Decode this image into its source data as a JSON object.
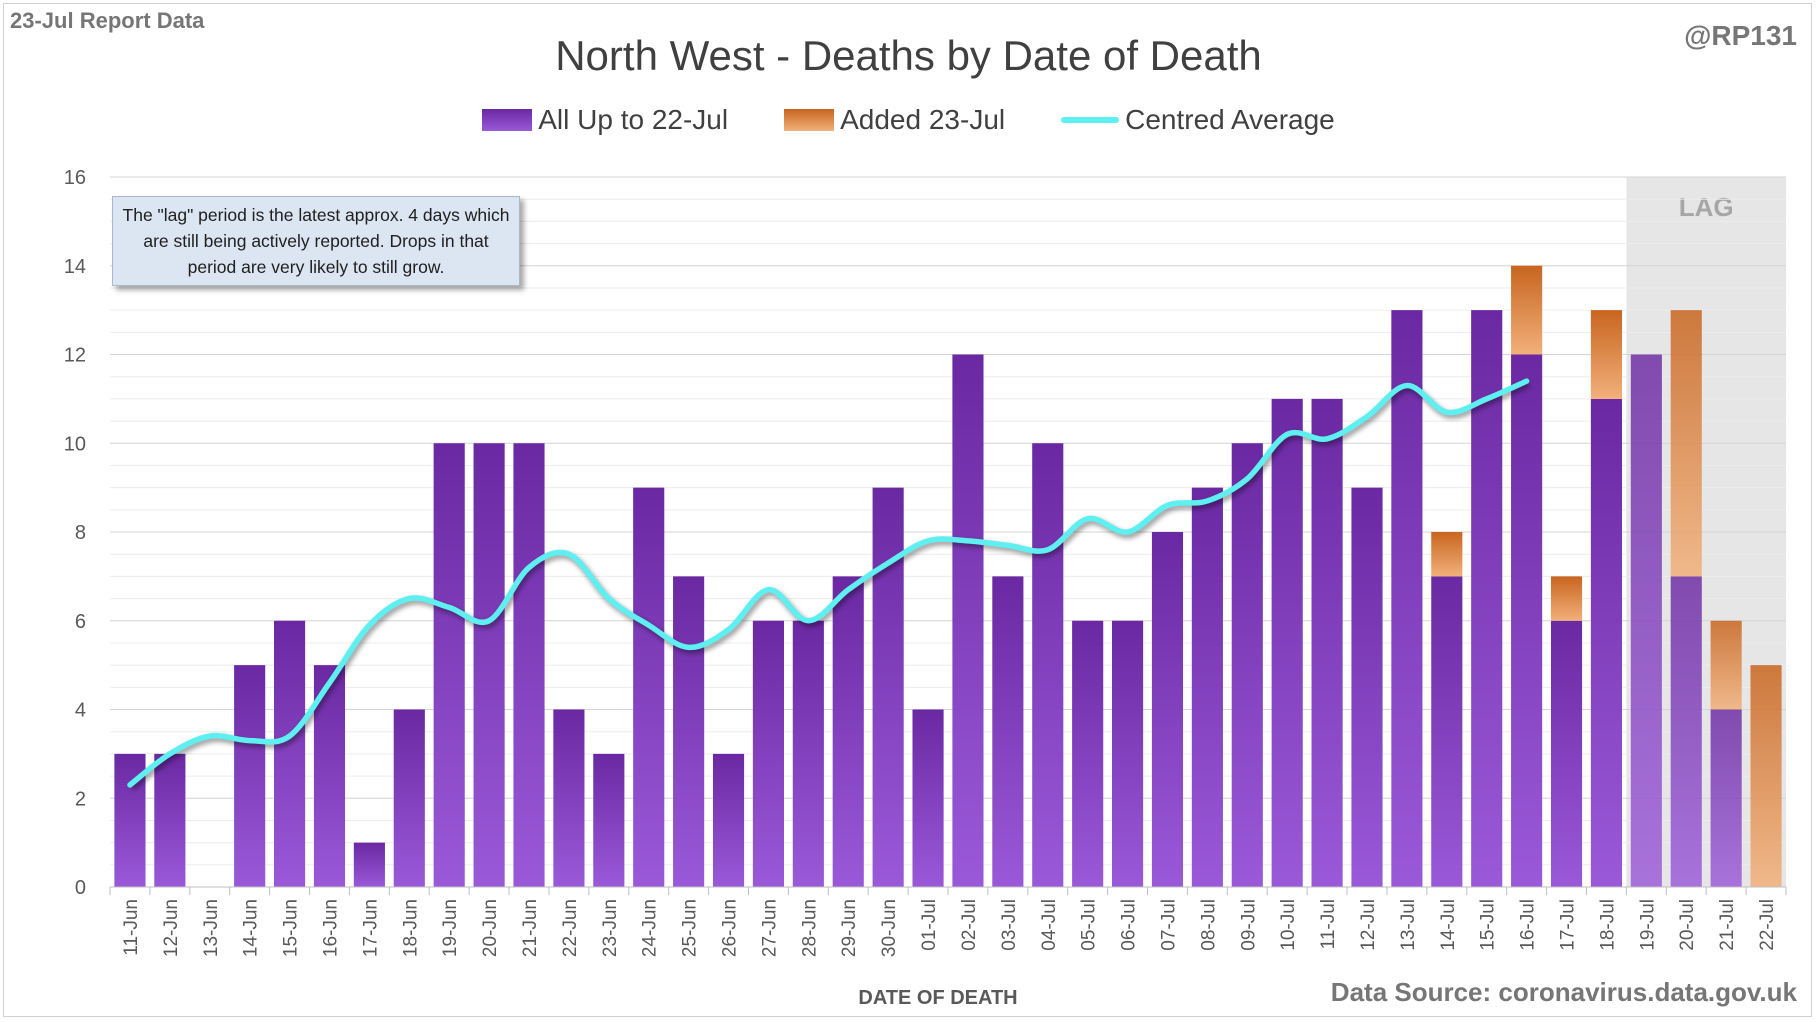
{
  "header": {
    "report_date": "23-Jul Report Data",
    "handle": "@RP131"
  },
  "footer": {
    "source": "Data Source: coronavirus.data.gov.uk"
  },
  "note": "The \"lag\" period is the latest approx. 4 days which are still being actively reported.  Drops in that period are very likely to still grow.",
  "colors": {
    "purple_top": "#6a28a2",
    "purple_bottom": "#9a59d8",
    "orange_top": "#c8651f",
    "orange_bottom": "#f2b07a",
    "average_line": "#5ef0f0",
    "lag_shade": "#e6e6e6"
  },
  "chart_data": {
    "type": "bar",
    "title": "North West - Deaths by Date of Death",
    "xlabel": "DATE OF DEATH",
    "ylabel": "",
    "ylim": [
      0,
      16
    ],
    "yticks": [
      0,
      2,
      4,
      6,
      8,
      10,
      12,
      14,
      16
    ],
    "stacked": true,
    "categories": [
      "11-Jun",
      "12-Jun",
      "13-Jun",
      "14-Jun",
      "15-Jun",
      "16-Jun",
      "17-Jun",
      "18-Jun",
      "19-Jun",
      "20-Jun",
      "21-Jun",
      "22-Jun",
      "23-Jun",
      "24-Jun",
      "25-Jun",
      "26-Jun",
      "27-Jun",
      "28-Jun",
      "29-Jun",
      "30-Jun",
      "01-Jul",
      "02-Jul",
      "03-Jul",
      "04-Jul",
      "05-Jul",
      "06-Jul",
      "07-Jul",
      "08-Jul",
      "09-Jul",
      "10-Jul",
      "11-Jul",
      "12-Jul",
      "13-Jul",
      "14-Jul",
      "15-Jul",
      "16-Jul",
      "17-Jul",
      "18-Jul",
      "19-Jul",
      "20-Jul",
      "21-Jul",
      "22-Jul"
    ],
    "series": [
      {
        "name": "All Up to 22-Jul",
        "kind": "bar",
        "values": [
          3,
          3,
          0,
          5,
          6,
          5,
          1,
          4,
          10,
          10,
          10,
          4,
          3,
          9,
          7,
          3,
          6,
          6,
          7,
          9,
          4,
          12,
          7,
          10,
          6,
          6,
          8,
          9,
          10,
          11,
          11,
          9,
          13,
          7,
          13,
          12,
          6,
          11,
          12,
          7,
          4,
          0
        ]
      },
      {
        "name": "Added 23-Jul",
        "kind": "bar",
        "values": [
          0,
          0,
          0,
          0,
          0,
          0,
          0,
          0,
          0,
          0,
          0,
          0,
          0,
          0,
          0,
          0,
          0,
          0,
          0,
          0,
          0,
          0,
          0,
          0,
          0,
          0,
          0,
          0,
          0,
          0,
          0,
          0,
          0,
          1,
          0,
          2,
          1,
          2,
          0,
          6,
          2,
          5
        ]
      },
      {
        "name": "Centred Average",
        "kind": "line",
        "values": [
          2.3,
          3.0,
          3.4,
          3.3,
          3.4,
          4.6,
          5.9,
          6.5,
          6.3,
          6.0,
          7.2,
          7.5,
          6.5,
          5.9,
          5.4,
          5.8,
          6.7,
          6.0,
          6.7,
          7.3,
          7.8,
          7.8,
          7.7,
          7.6,
          8.3,
          8.0,
          8.6,
          8.7,
          9.2,
          10.2,
          10.1,
          10.6,
          11.3,
          10.7,
          11.0,
          11.4,
          null,
          null,
          null,
          null,
          null,
          null
        ]
      }
    ],
    "lag_region": {
      "label": "LAG",
      "categories": [
        "19-Jul",
        "20-Jul",
        "21-Jul",
        "22-Jul"
      ]
    }
  }
}
